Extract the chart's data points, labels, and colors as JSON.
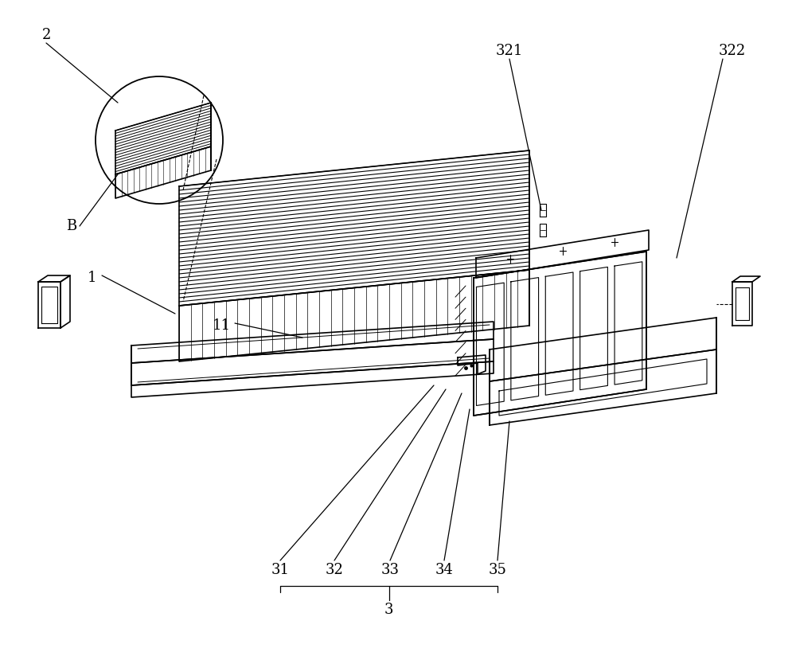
{
  "bg_color": "#ffffff",
  "line_color": "#000000",
  "fig_width": 10.0,
  "fig_height": 8.24,
  "dpi": 100,
  "label_fontsize": 13
}
